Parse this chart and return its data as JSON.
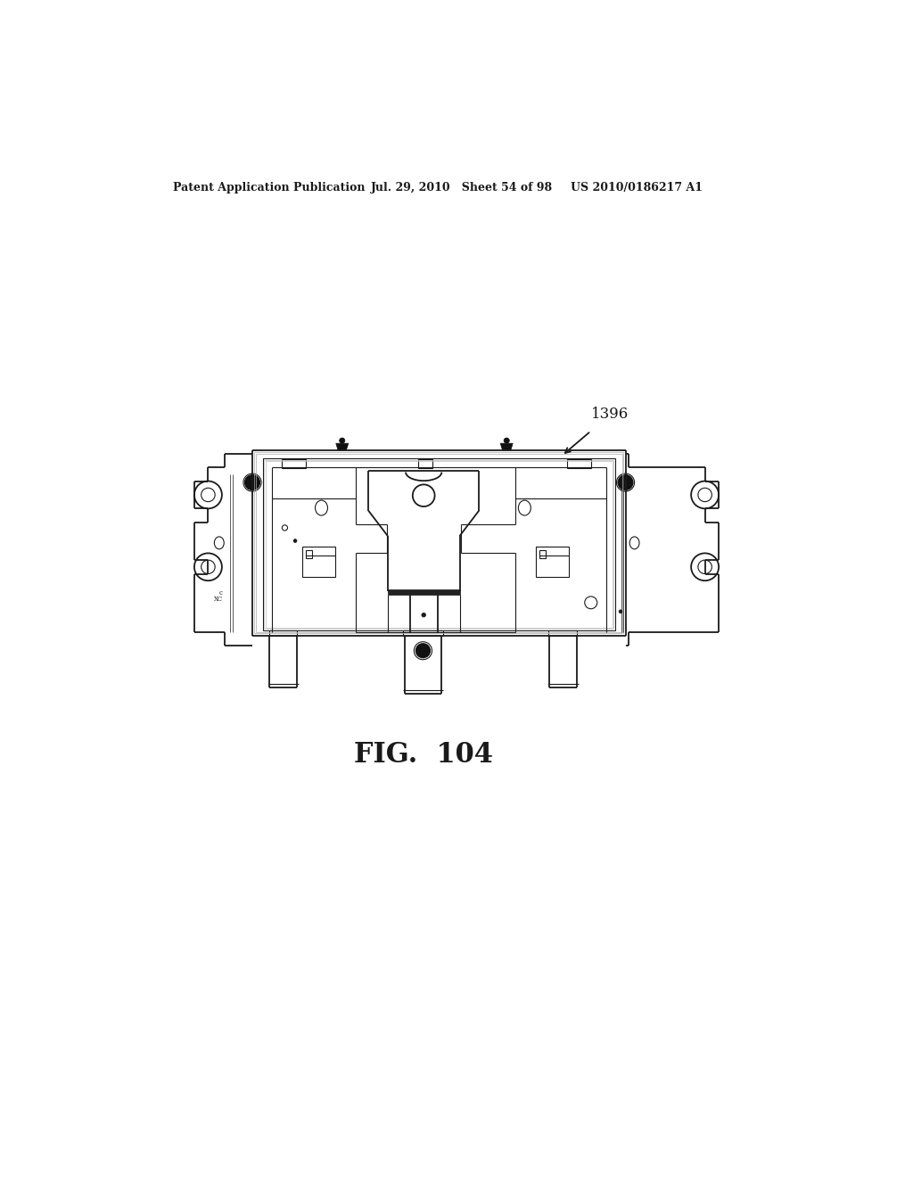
{
  "header_left": "Patent Application Publication",
  "header_mid": "Jul. 29, 2010   Sheet 54 of 98",
  "header_right": "US 2010/0186217 A1",
  "label_ref": "1396",
  "background_color": "#ffffff",
  "line_color": "#1a1a1a",
  "fig_caption": "FIG.  104"
}
